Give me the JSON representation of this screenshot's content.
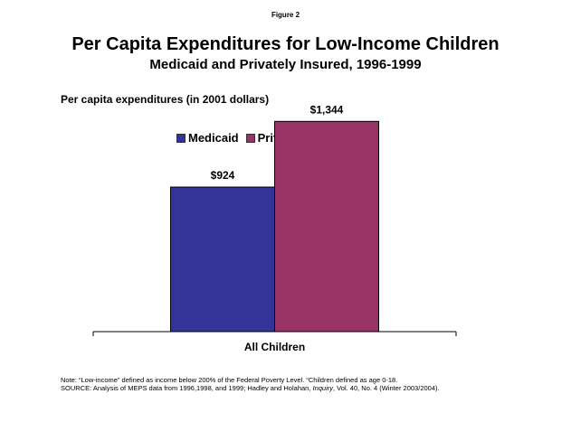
{
  "figure_label": "Figure 2",
  "title": "Per Capita Expenditures for Low-Income Children",
  "subtitle": "Medicaid and Privately Insured, 1996-1999",
  "colors": {
    "medicaid": "#333399",
    "privately_insured": "#993366"
  },
  "chart_data": {
    "type": "bar",
    "title": "Per Capita Expenditures for Low-Income Children",
    "subtitle": "Medicaid and Privately Insured, 1996-1999",
    "ylabel": "Per capita expenditures (in 2001 dollars)",
    "xlabel": "",
    "categories": [
      "All Children"
    ],
    "series": [
      {
        "name": "Medicaid",
        "values": [
          924
        ],
        "labels": [
          "$924"
        ],
        "color": "#333399"
      },
      {
        "name": "Privately Insured",
        "values": [
          1344
        ],
        "labels": [
          "$1,344"
        ],
        "color": "#993366"
      }
    ],
    "ylim": [
      0,
      1600
    ],
    "grid": false,
    "legend_position": "top-center"
  },
  "notes": {
    "line1": "Note: “Low-income” defined as income below 200% of the Federal Poverty Level. “Children defined as age 0-18.",
    "source_prefix": "SOURCE: Analysis of MEPS data from 1996,1998, and 1999; Hadley and Holahan, ",
    "source_journal": "Inquiry",
    "source_suffix": ", Vol. 40, No. 4 (Winter 2003/2004)."
  }
}
